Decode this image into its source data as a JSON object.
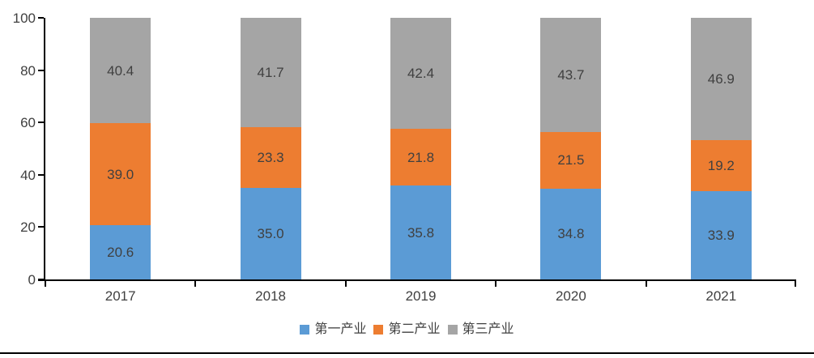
{
  "chart_data": {
    "type": "bar",
    "subtype": "stacked",
    "categories": [
      "2017",
      "2018",
      "2019",
      "2020",
      "2021"
    ],
    "series": [
      {
        "name": "第一产业",
        "color": "#5B9BD5",
        "values": [
          20.6,
          35.0,
          35.8,
          34.8,
          33.9
        ]
      },
      {
        "name": "第二产业",
        "color": "#ED7D31",
        "values": [
          39.0,
          23.3,
          21.8,
          21.5,
          19.2
        ]
      },
      {
        "name": "第三产业",
        "color": "#A5A5A5",
        "values": [
          40.4,
          41.7,
          42.4,
          43.7,
          46.9
        ]
      }
    ],
    "title": "",
    "xlabel": "",
    "ylabel": "",
    "ylim": [
      0,
      100
    ],
    "yticks": [
      0,
      20,
      40,
      60,
      80,
      100
    ],
    "grid": false,
    "legend_position": "bottom",
    "data_labels": "center",
    "label_decimals": 1
  },
  "colors": {
    "axis": "#000000",
    "text": "#404040",
    "background": "#ffffff",
    "divider": "#000000"
  }
}
